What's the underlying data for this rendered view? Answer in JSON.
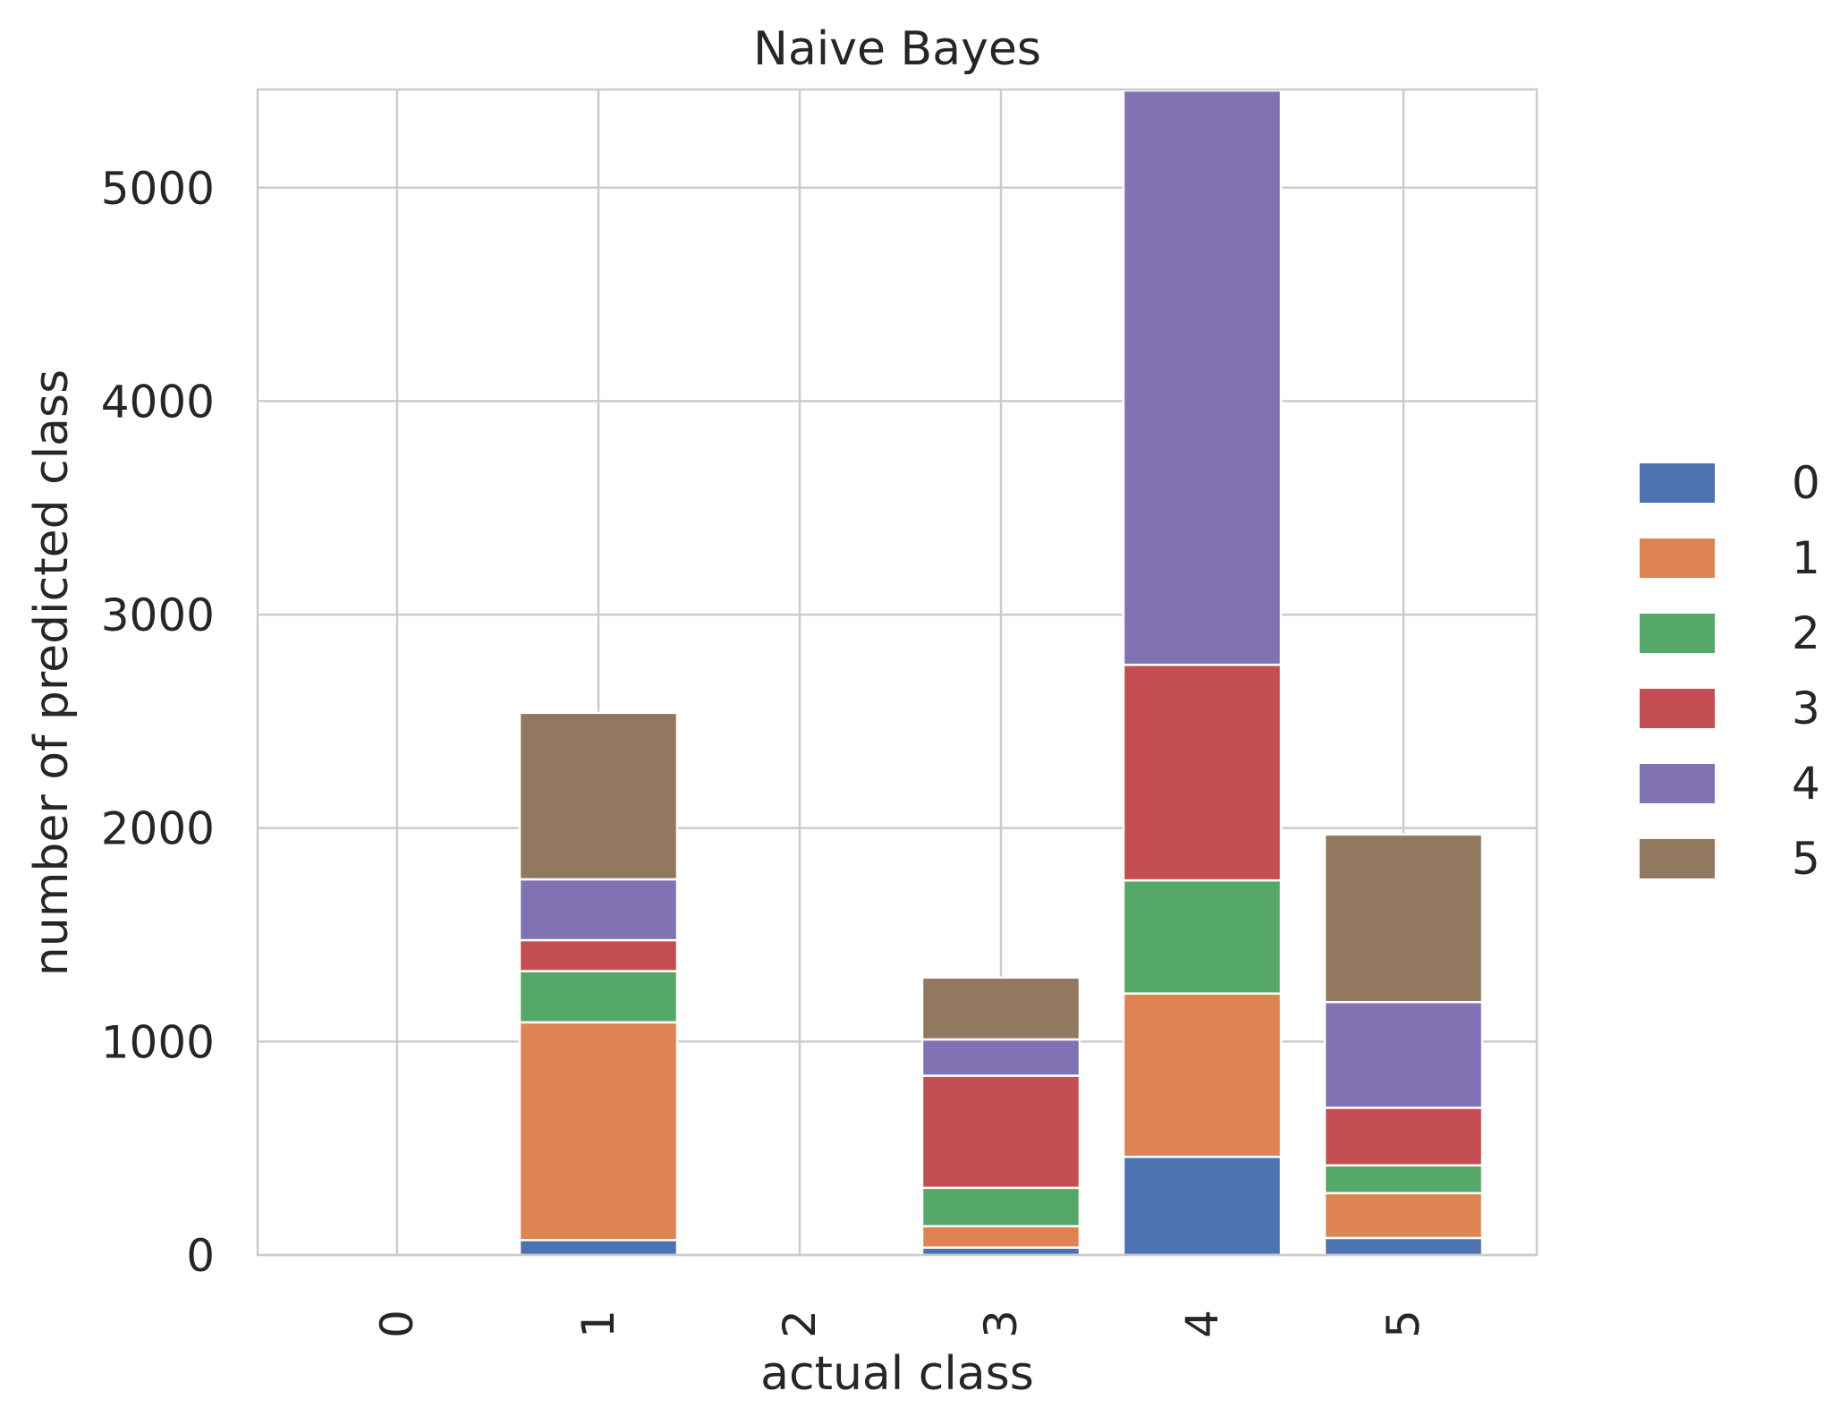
{
  "chart_data": {
    "type": "bar",
    "stacked": true,
    "title": "Naive Bayes",
    "xlabel": "actual class",
    "ylabel": "number of predicted class",
    "categories": [
      "0",
      "1",
      "2",
      "3",
      "4",
      "5"
    ],
    "ylim": [
      0,
      5460
    ],
    "yticks": [
      0,
      1000,
      2000,
      3000,
      4000,
      5000
    ],
    "grid": true,
    "legend_position": "right",
    "series": [
      {
        "name": "0",
        "color": "#4c72b0",
        "values": [
          0,
          70,
          0,
          35,
          460,
          80
        ]
      },
      {
        "name": "1",
        "color": "#dd8452",
        "values": [
          0,
          1020,
          0,
          100,
          765,
          210
        ]
      },
      {
        "name": "2",
        "color": "#55a868",
        "values": [
          0,
          240,
          0,
          180,
          530,
          130
        ]
      },
      {
        "name": "3",
        "color": "#c44e52",
        "values": [
          0,
          145,
          0,
          525,
          1010,
          270
        ]
      },
      {
        "name": "4",
        "color": "#8172b3",
        "values": [
          0,
          285,
          0,
          170,
          2690,
          495
        ]
      },
      {
        "name": "5",
        "color": "#937860",
        "values": [
          0,
          780,
          0,
          290,
          0,
          785
        ]
      }
    ]
  }
}
